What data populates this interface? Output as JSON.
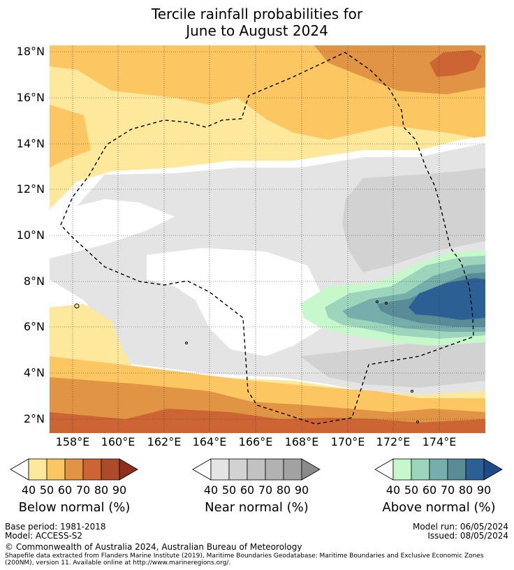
{
  "title": {
    "line1": "Tercile rainfall probabilities for",
    "line2": "June to August 2024"
  },
  "map": {
    "lat_labels": [
      "18°N",
      "16°N",
      "14°N",
      "12°N",
      "10°N",
      "8°N",
      "6°N",
      "4°N",
      "2°N"
    ],
    "lon_labels": [
      "158°E",
      "160°E",
      "162°E",
      "164°E",
      "166°E",
      "168°E",
      "170°E",
      "172°E",
      "174°E"
    ]
  },
  "legends": [
    {
      "name": "Below normal (%)",
      "ticks": [
        "40",
        "50",
        "60",
        "70",
        "80",
        "90"
      ],
      "colors": [
        "#ffffff",
        "#fde89c",
        "#fcc762",
        "#e09444",
        "#cc6434",
        "#ad4a2a",
        "#8f2e1a"
      ]
    },
    {
      "name": "Near normal (%)",
      "ticks": [
        "40",
        "50",
        "60",
        "70",
        "80",
        "90"
      ],
      "colors": [
        "#ffffff",
        "#e4e4e4",
        "#d2d2d2",
        "#c2c2c2",
        "#b2b2b2",
        "#a2a2a2",
        "#8a8a8a"
      ]
    },
    {
      "name": "Above normal (%)",
      "ticks": [
        "40",
        "50",
        "60",
        "70",
        "80",
        "90"
      ],
      "colors": [
        "#ffffff",
        "#c6f8cc",
        "#9cd4bc",
        "#76aeab",
        "#5a8c98",
        "#2c6094",
        "#1c4c84"
      ]
    }
  ],
  "footer": {
    "base_period": "Base period: 1981-2018",
    "model": "Model: ACCESS-S2",
    "model_run": "Model run: 06/05/2024",
    "issued": "Issued: 08/05/2024",
    "copyright": "© Commonwealth of Australia 2024, Australian Bureau of Meteorology",
    "shapefile_line1": "Shapefile data extracted from Flanders Marine Institute (2019), Maritime Boundaries Geodatabase: Maritime Boundaries and Exclusive Economic Zones",
    "shapefile_line2": "(200NM), version 11. Available online at http://www.marineregions.org/."
  }
}
